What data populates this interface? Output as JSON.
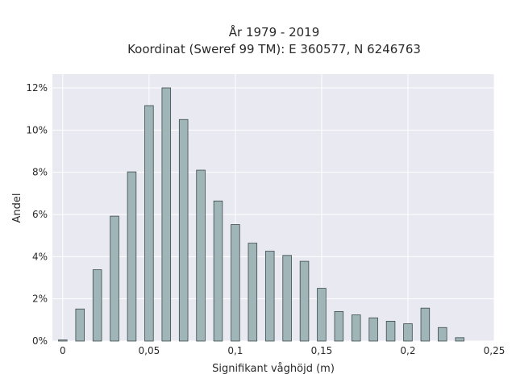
{
  "chart_data": {
    "type": "bar",
    "title_line1": "År 1979 - 2019",
    "title_line2": "Koordinat (Sweref 99 TM): E 360577, N 6246763",
    "xlabel": "Signifikant våghöjd (m)",
    "ylabel": "Andel",
    "xlim": [
      -0.006,
      0.25
    ],
    "ylim": [
      0,
      0.1265
    ],
    "x_ticks": [
      0,
      0.05,
      0.1,
      0.15,
      0.2,
      0.25
    ],
    "x_tick_labels": [
      "0",
      "0,05",
      "0,1",
      "0,15",
      "0,2",
      "0,25"
    ],
    "y_ticks": [
      0,
      0.02,
      0.04,
      0.06,
      0.08,
      0.1,
      0.12
    ],
    "y_tick_labels": [
      "0%",
      "2%",
      "4%",
      "6%",
      "8%",
      "10%",
      "12%"
    ],
    "bar_width": 0.005,
    "x": [
      0,
      0.01,
      0.02,
      0.03,
      0.04,
      0.05,
      0.06,
      0.07,
      0.08,
      0.09,
      0.1,
      0.11,
      0.12,
      0.13,
      0.14,
      0.15,
      0.16,
      0.17,
      0.18,
      0.19,
      0.2,
      0.21,
      0.22,
      0.23
    ],
    "values": [
      0.0005,
      0.0152,
      0.0338,
      0.0592,
      0.0802,
      0.1116,
      0.12,
      0.105,
      0.081,
      0.0664,
      0.0552,
      0.0464,
      0.0426,
      0.0406,
      0.0378,
      0.025,
      0.014,
      0.0124,
      0.011,
      0.0094,
      0.0082,
      0.0156,
      0.0064,
      0.0016
    ],
    "grid": true,
    "colors": {
      "plot_background": "#e9e9f1",
      "grid": "#ffffff",
      "bar_fill": "#9fb5b7",
      "bar_stroke": "#3c4a4b"
    }
  }
}
